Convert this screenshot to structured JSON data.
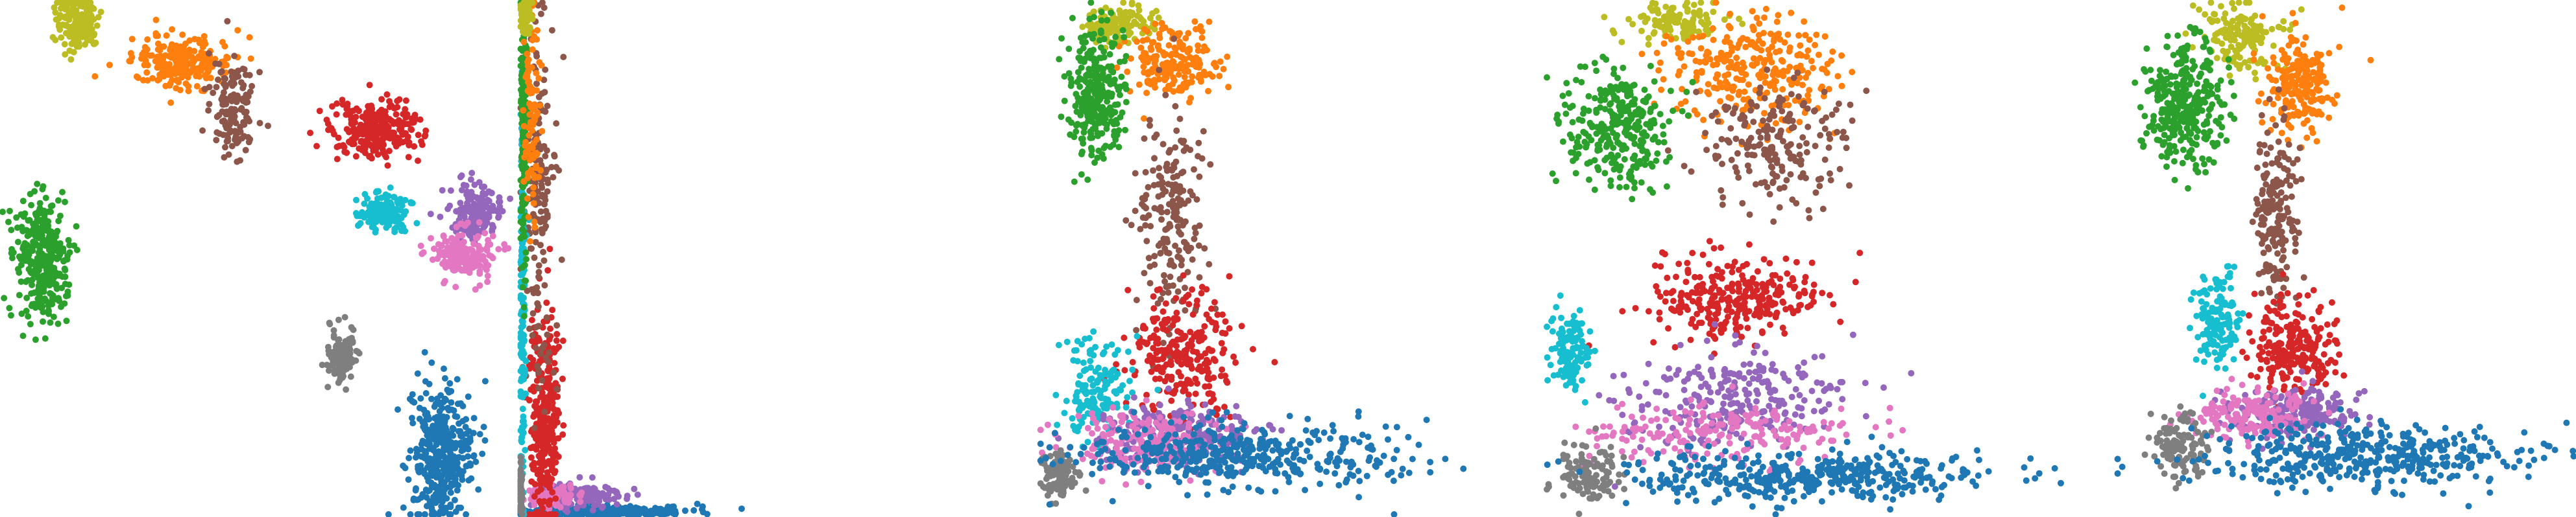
{
  "chart_data": [
    {
      "type": "scatter",
      "axes_visible": false,
      "clusters": [
        {
          "color": "#bcbd22",
          "center": [
            0.15,
            0.04
          ],
          "spread": [
            0.035,
            0.05
          ],
          "count": 170
        },
        {
          "color": "#ff7f0e",
          "center": [
            0.35,
            0.12
          ],
          "spread": [
            0.08,
            0.04
          ],
          "count": 240
        },
        {
          "color": "#8c564b",
          "center": [
            0.45,
            0.21
          ],
          "spread": [
            0.035,
            0.07
          ],
          "count": 150
        },
        {
          "color": "#d62728",
          "center": [
            0.72,
            0.25
          ],
          "spread": [
            0.07,
            0.05
          ],
          "count": 260
        },
        {
          "color": "#17becf",
          "center": [
            0.74,
            0.41
          ],
          "spread": [
            0.04,
            0.03
          ],
          "count": 160
        },
        {
          "color": "#9467bd",
          "center": [
            0.92,
            0.41
          ],
          "spread": [
            0.04,
            0.04
          ],
          "count": 170
        },
        {
          "color": "#e377c2",
          "center": [
            0.89,
            0.49
          ],
          "spread": [
            0.05,
            0.04
          ],
          "count": 180
        },
        {
          "color": "#2ca02c",
          "center": [
            0.08,
            0.5
          ],
          "spread": [
            0.04,
            0.1
          ],
          "count": 340
        },
        {
          "color": "#7f7f7f",
          "center": [
            0.66,
            0.69
          ],
          "spread": [
            0.025,
            0.05
          ],
          "count": 110
        },
        {
          "color": "#1f77b4",
          "center": [
            0.85,
            0.88
          ],
          "spread": [
            0.05,
            0.11
          ],
          "count": 380
        }
      ]
    },
    {
      "type": "scatter",
      "axes_visible": false,
      "clusters": [
        {
          "color": "#1f77b4",
          "center": [
            0.25,
            0.99
          ],
          "spread": [
            0.22,
            0.01
          ],
          "count": 260
        },
        {
          "color": "#9467bd",
          "center": [
            0.18,
            0.96
          ],
          "spread": [
            0.12,
            0.02
          ],
          "count": 150
        },
        {
          "color": "#e377c2",
          "center": [
            0.1,
            0.96
          ],
          "spread": [
            0.06,
            0.02
          ],
          "count": 90
        },
        {
          "color": "#d62728",
          "center": [
            0.08,
            0.8
          ],
          "spread": [
            0.04,
            0.17
          ],
          "count": 320
        },
        {
          "color": "#8c564b",
          "center": [
            0.06,
            0.4
          ],
          "spread": [
            0.04,
            0.28
          ],
          "count": 170
        },
        {
          "color": "#17becf",
          "center": [
            0.01,
            0.6
          ],
          "spread": [
            0.008,
            0.32
          ],
          "count": 150
        },
        {
          "color": "#2ca02c",
          "center": [
            0.015,
            0.25
          ],
          "spread": [
            0.008,
            0.22
          ],
          "count": 220
        },
        {
          "color": "#ff7f0e",
          "center": [
            0.04,
            0.2
          ],
          "spread": [
            0.02,
            0.18
          ],
          "count": 100
        },
        {
          "color": "#bcbd22",
          "center": [
            0.02,
            0.03
          ],
          "spread": [
            0.015,
            0.03
          ],
          "count": 90
        },
        {
          "color": "#7f7f7f",
          "center": [
            0.005,
            0.95
          ],
          "spread": [
            0.004,
            0.04
          ],
          "count": 60
        }
      ]
    },
    {
      "type": "scatter",
      "axes_visible": false,
      "clusters": [
        {
          "color": "#bcbd22",
          "center": [
            0.17,
            0.05
          ],
          "spread": [
            0.06,
            0.03
          ],
          "count": 130
        },
        {
          "color": "#ff7f0e",
          "center": [
            0.28,
            0.12
          ],
          "spread": [
            0.08,
            0.06
          ],
          "count": 190
        },
        {
          "color": "#2ca02c",
          "center": [
            0.12,
            0.18
          ],
          "spread": [
            0.05,
            0.1
          ],
          "count": 300
        },
        {
          "color": "#8c564b",
          "center": [
            0.28,
            0.42
          ],
          "spread": [
            0.06,
            0.17
          ],
          "count": 200
        },
        {
          "color": "#d62728",
          "center": [
            0.3,
            0.68
          ],
          "spread": [
            0.09,
            0.1
          ],
          "count": 260
        },
        {
          "color": "#17becf",
          "center": [
            0.12,
            0.75
          ],
          "spread": [
            0.06,
            0.08
          ],
          "count": 150
        },
        {
          "color": "#9467bd",
          "center": [
            0.3,
            0.84
          ],
          "spread": [
            0.14,
            0.05
          ],
          "count": 230
        },
        {
          "color": "#e377c2",
          "center": [
            0.22,
            0.86
          ],
          "spread": [
            0.13,
            0.05
          ],
          "count": 200
        },
        {
          "color": "#7f7f7f",
          "center": [
            0.04,
            0.92
          ],
          "spread": [
            0.03,
            0.04
          ],
          "count": 130
        },
        {
          "color": "#1f77b4",
          "center": [
            0.42,
            0.88
          ],
          "spread": [
            0.28,
            0.05
          ],
          "count": 420
        }
      ]
    },
    {
      "type": "scatter",
      "axes_visible": false,
      "clusters": [
        {
          "color": "#bcbd22",
          "center": [
            0.25,
            0.04
          ],
          "spread": [
            0.08,
            0.03
          ],
          "count": 120
        },
        {
          "color": "#ff7f0e",
          "center": [
            0.4,
            0.14
          ],
          "spread": [
            0.13,
            0.09
          ],
          "count": 280
        },
        {
          "color": "#8c564b",
          "center": [
            0.45,
            0.28
          ],
          "spread": [
            0.12,
            0.1
          ],
          "count": 200
        },
        {
          "color": "#2ca02c",
          "center": [
            0.14,
            0.24
          ],
          "spread": [
            0.08,
            0.1
          ],
          "count": 300
        },
        {
          "color": "#d62728",
          "center": [
            0.37,
            0.58
          ],
          "spread": [
            0.14,
            0.07
          ],
          "count": 290
        },
        {
          "color": "#17becf",
          "center": [
            0.05,
            0.68
          ],
          "spread": [
            0.03,
            0.06
          ],
          "count": 120
        },
        {
          "color": "#9467bd",
          "center": [
            0.35,
            0.77
          ],
          "spread": [
            0.18,
            0.08
          ],
          "count": 260
        },
        {
          "color": "#e377c2",
          "center": [
            0.35,
            0.84
          ],
          "spread": [
            0.22,
            0.05
          ],
          "count": 200
        },
        {
          "color": "#7f7f7f",
          "center": [
            0.08,
            0.92
          ],
          "spread": [
            0.05,
            0.05
          ],
          "count": 110
        },
        {
          "color": "#1f77b4",
          "center": [
            0.52,
            0.92
          ],
          "spread": [
            0.3,
            0.04
          ],
          "count": 400
        }
      ]
    },
    {
      "type": "scatter",
      "axes_visible": false,
      "clusters": [
        {
          "color": "#bcbd22",
          "center": [
            0.27,
            0.07
          ],
          "spread": [
            0.07,
            0.05
          ],
          "count": 150
        },
        {
          "color": "#ff7f0e",
          "center": [
            0.4,
            0.16
          ],
          "spread": [
            0.06,
            0.08
          ],
          "count": 210
        },
        {
          "color": "#2ca02c",
          "center": [
            0.15,
            0.2
          ],
          "spread": [
            0.07,
            0.1
          ],
          "count": 320
        },
        {
          "color": "#8c564b",
          "center": [
            0.35,
            0.42
          ],
          "spread": [
            0.04,
            0.14
          ],
          "count": 180
        },
        {
          "color": "#17becf",
          "center": [
            0.22,
            0.62
          ],
          "spread": [
            0.04,
            0.08
          ],
          "count": 140
        },
        {
          "color": "#d62728",
          "center": [
            0.38,
            0.67
          ],
          "spread": [
            0.08,
            0.07
          ],
          "count": 240
        },
        {
          "color": "#9467bd",
          "center": [
            0.4,
            0.8
          ],
          "spread": [
            0.12,
            0.04
          ],
          "count": 220
        },
        {
          "color": "#e377c2",
          "center": [
            0.3,
            0.8
          ],
          "spread": [
            0.1,
            0.04
          ],
          "count": 170
        },
        {
          "color": "#7f7f7f",
          "center": [
            0.14,
            0.86
          ],
          "spread": [
            0.05,
            0.05
          ],
          "count": 130
        },
        {
          "color": "#1f77b4",
          "center": [
            0.55,
            0.88
          ],
          "spread": [
            0.3,
            0.05
          ],
          "count": 420
        }
      ]
    }
  ]
}
